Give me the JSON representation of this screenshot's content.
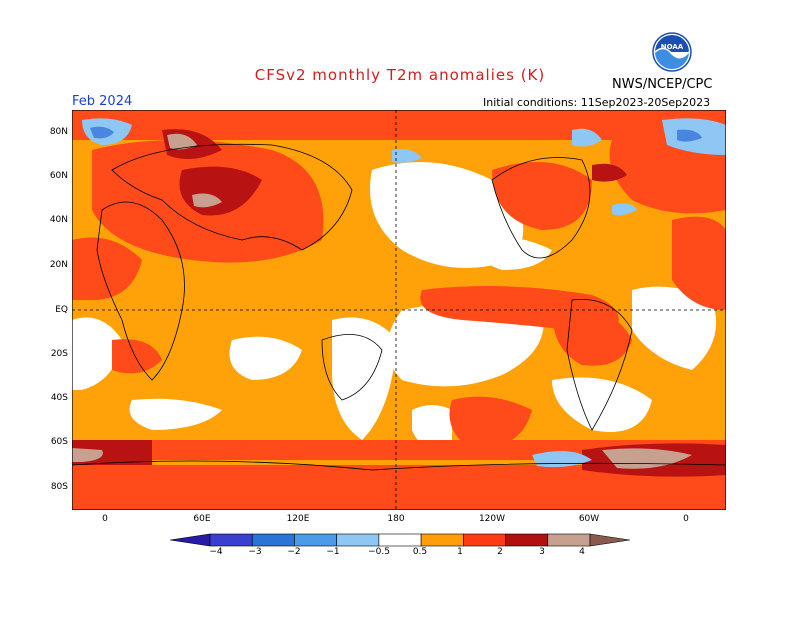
{
  "header": {
    "title": "CFSv2 monthly T2m anomalies (K)",
    "agency": "NWS/NCEP/CPC",
    "month": "Feb 2024",
    "initial_conditions": "Initial conditions: 11Sep2023-20Sep2023",
    "logo_text": "NOAA"
  },
  "axes": {
    "lat_labels": [
      "80N",
      "60N",
      "40N",
      "20N",
      "EQ",
      "20S",
      "40S",
      "60S",
      "80S"
    ],
    "lon_labels": [
      "0",
      "60E",
      "120E",
      "180",
      "120W",
      "60W",
      "0"
    ]
  },
  "colorbar": {
    "labels": [
      "−4",
      "−3",
      "−2",
      "−1",
      "−0.5",
      "0.5",
      "1",
      "2",
      "3",
      "4"
    ],
    "colors": [
      "#2a1aa8",
      "#3a3fd0",
      "#2a74d8",
      "#4a9ce8",
      "#8ec6f4",
      "#ffffff",
      "#ff9e0a",
      "#ff3b14",
      "#b01010",
      "#c8a090",
      "#8a5a50"
    ]
  },
  "colors": {
    "orange": "#ffa20a",
    "red": "#ff4a1a",
    "darkred": "#b81212",
    "brown": "#bfa09a",
    "lightblue": "#8ec6f4",
    "blue": "#4a86e0"
  }
}
